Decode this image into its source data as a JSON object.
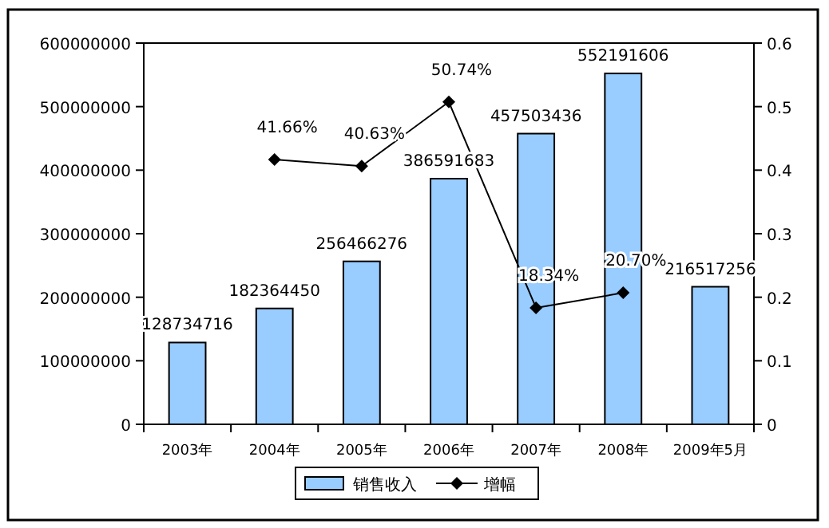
{
  "chart_data": {
    "type": "bar",
    "categories": [
      "2003年",
      "2004年",
      "2005年",
      "2006年",
      "2007年",
      "2008年",
      "2009年5月"
    ],
    "series": [
      {
        "name": "销售收入",
        "color": "#99ccff",
        "values": [
          128734716,
          182364450,
          256466276,
          386591683,
          457503436,
          552191606,
          216517256
        ],
        "value_labels": [
          "128734716",
          "182364450",
          "256466276",
          "386591683",
          "457503436",
          "552191606",
          "216517256"
        ]
      },
      {
        "name": "增幅",
        "type": "line",
        "axis": "y2",
        "color": "#000000",
        "marker": "diamond",
        "values": [
          null,
          0.4166,
          0.4063,
          0.5074,
          0.1834,
          0.207,
          null
        ],
        "value_labels": [
          null,
          "41.66%",
          "40.63%",
          "50.74%",
          "18.34%",
          "20.70%",
          null
        ]
      }
    ],
    "ylim": [
      0,
      600000000
    ],
    "yticks": [
      0,
      100000000,
      200000000,
      300000000,
      400000000,
      500000000,
      600000000
    ],
    "y2lim": [
      0,
      0.6
    ],
    "y2ticks": [
      0,
      0.1,
      0.2,
      0.3,
      0.4,
      0.5,
      0.6
    ],
    "legend": "bottom"
  }
}
